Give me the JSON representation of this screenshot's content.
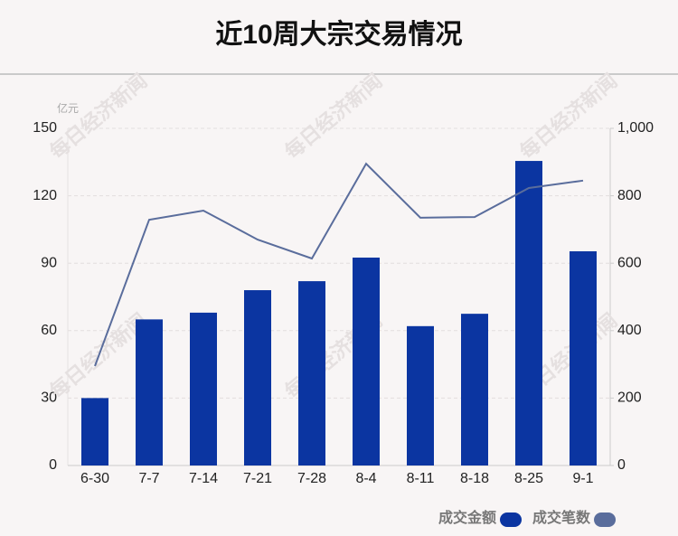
{
  "chart_data": {
    "type": "bar_line",
    "title": "近10周大宗交易情况",
    "y_unit": "亿元",
    "watermark": "每日经济新闻",
    "categories": [
      "6-30",
      "7-7",
      "7-14",
      "7-21",
      "7-28",
      "8-4",
      "8-11",
      "8-18",
      "8-25",
      "9-1"
    ],
    "series": [
      {
        "name": "成交金额",
        "type": "bar",
        "color": "#0b35a1",
        "values": [
          30,
          65,
          68,
          78,
          82,
          92.5,
          62,
          67.5,
          135.5,
          95.3
        ]
      },
      {
        "name": "成交笔数",
        "type": "line",
        "axis": "y2",
        "color": "#5a6d9c",
        "values": [
          295,
          729,
          756,
          670,
          614,
          895,
          735,
          737,
          823,
          845
        ]
      }
    ],
    "ylim": [
      0,
      150
    ],
    "yticks": [
      0,
      30,
      60,
      90,
      120,
      150
    ],
    "y2lim": [
      0,
      1000
    ],
    "y2ticks": [
      0,
      200,
      400,
      600,
      800,
      {
        "value": 1000,
        "label": "1,000"
      }
    ],
    "grid": true
  }
}
